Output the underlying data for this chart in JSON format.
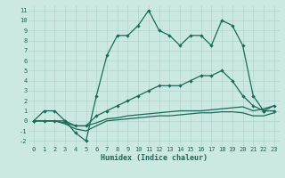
{
  "xlabel": "Humidex (Indice chaleur)",
  "xlim": [
    -0.5,
    23.5
  ],
  "ylim": [
    -2.5,
    11.5
  ],
  "xticks": [
    0,
    1,
    2,
    3,
    4,
    5,
    6,
    7,
    8,
    9,
    10,
    11,
    12,
    13,
    14,
    15,
    16,
    17,
    18,
    19,
    20,
    21,
    22,
    23
  ],
  "yticks": [
    -2,
    -1,
    0,
    1,
    2,
    3,
    4,
    5,
    6,
    7,
    8,
    9,
    10,
    11
  ],
  "background_color": "#cce8e2",
  "grid_color": "#b0d8d0",
  "line_color": "#1a6b5a",
  "line1_x": [
    0,
    1,
    2,
    3,
    4,
    5,
    6,
    7,
    8,
    9,
    10,
    11,
    12,
    13,
    14,
    15,
    16,
    17,
    18,
    19,
    20,
    21,
    22,
    23
  ],
  "line1_y": [
    0,
    1,
    1,
    0,
    -1.2,
    -2.0,
    2.5,
    6.5,
    8.5,
    8.5,
    9.5,
    11,
    9.0,
    8.5,
    7.5,
    8.5,
    8.5,
    7.5,
    10,
    9.5,
    7.5,
    2.5,
    1.0,
    1.0
  ],
  "line2_x": [
    0,
    1,
    2,
    3,
    4,
    5,
    6,
    7,
    8,
    9,
    10,
    11,
    12,
    13,
    14,
    15,
    16,
    17,
    18,
    19,
    20,
    21,
    22,
    23
  ],
  "line2_y": [
    0,
    0,
    0,
    0,
    -0.5,
    -0.5,
    0.5,
    1.0,
    1.5,
    2.0,
    2.5,
    3.0,
    3.5,
    3.5,
    3.5,
    4.0,
    4.5,
    4.5,
    5.0,
    4.0,
    2.5,
    1.5,
    1.0,
    1.5
  ],
  "line3_x": [
    0,
    1,
    2,
    3,
    4,
    5,
    6,
    7,
    8,
    9,
    10,
    11,
    12,
    13,
    14,
    15,
    16,
    17,
    18,
    19,
    20,
    21,
    22,
    23
  ],
  "line3_y": [
    0,
    0,
    0,
    -0.2,
    -0.5,
    -0.5,
    -0.2,
    0.2,
    0.3,
    0.5,
    0.6,
    0.7,
    0.8,
    0.9,
    1.0,
    1.0,
    1.0,
    1.1,
    1.2,
    1.3,
    1.4,
    1.0,
    1.2,
    1.5
  ],
  "line4_x": [
    0,
    1,
    2,
    3,
    4,
    5,
    6,
    7,
    8,
    9,
    10,
    11,
    12,
    13,
    14,
    15,
    16,
    17,
    18,
    19,
    20,
    21,
    22,
    23
  ],
  "line4_y": [
    0,
    0,
    0,
    -0.3,
    -0.8,
    -1.0,
    -0.5,
    0.0,
    0.1,
    0.2,
    0.3,
    0.4,
    0.5,
    0.5,
    0.6,
    0.7,
    0.8,
    0.8,
    0.9,
    0.9,
    0.8,
    0.5,
    0.5,
    0.8
  ],
  "linewidth": 0.9,
  "markersize": 2.2,
  "tick_fontsize": 5,
  "xlabel_fontsize": 6
}
